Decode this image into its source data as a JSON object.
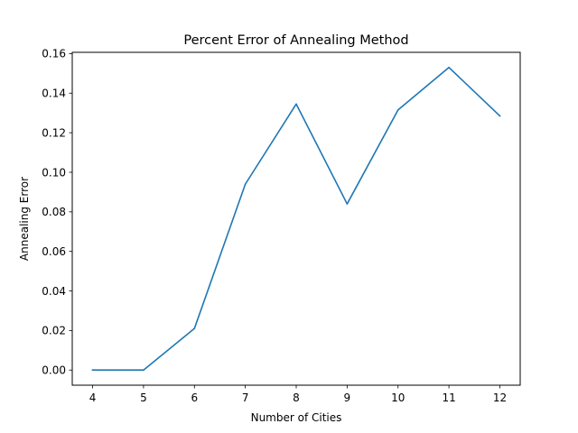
{
  "chart_data": {
    "type": "line",
    "title": "Percent Error of Annealing Method",
    "xlabel": "Number of Cities",
    "ylabel": "Annealing Error",
    "x": [
      4,
      5,
      6,
      7,
      8,
      9,
      10,
      11,
      12
    ],
    "series": [
      {
        "values": [
          0.0,
          0.0,
          0.021,
          0.094,
          0.1345,
          0.084,
          0.1315,
          0.153,
          0.1285
        ],
        "color": "#1f77b4"
      }
    ],
    "xlim": [
      3.6,
      12.4
    ],
    "ylim": [
      -0.00765,
      0.16065
    ],
    "xticks": [
      4,
      5,
      6,
      7,
      8,
      9,
      10,
      11,
      12
    ],
    "yticks": [
      0.0,
      0.02,
      0.04,
      0.06,
      0.08,
      0.1,
      0.12,
      0.14,
      0.16
    ],
    "xtick_labels": [
      "4",
      "5",
      "6",
      "7",
      "8",
      "9",
      "10",
      "11",
      "12"
    ],
    "ytick_labels": [
      "0.00",
      "0.02",
      "0.04",
      "0.06",
      "0.08",
      "0.10",
      "0.12",
      "0.14",
      "0.16"
    ],
    "grid": false,
    "legend": false
  }
}
